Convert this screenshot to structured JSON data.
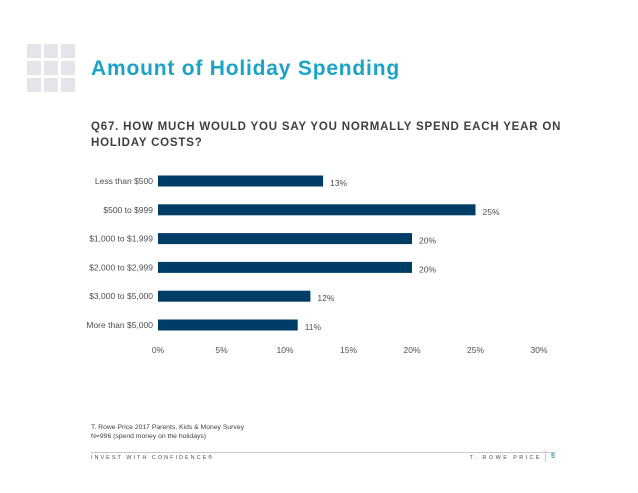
{
  "slide": {
    "title": "Amount of Holiday Spending",
    "question": "Q67. HOW MUCH WOULD YOU SAY YOU NORMALLY SPEND EACH YEAR ON HOLIDAY COSTS?"
  },
  "chart_data": {
    "type": "bar",
    "orientation": "horizontal",
    "categories": [
      "Less than $500",
      "$500 to $999",
      "$1,000 to $1,999",
      "$2,000 to $2,999",
      "$3,000 to $5,000",
      "More than $5,000"
    ],
    "values": [
      13,
      25,
      20,
      20,
      12,
      11
    ],
    "value_labels": [
      "13%",
      "25%",
      "20%",
      "20%",
      "12%",
      "11%"
    ],
    "xticks": [
      "0%",
      "5%",
      "10%",
      "15%",
      "20%",
      "25%",
      "30%"
    ],
    "xlim": [
      0,
      30
    ],
    "bar_color": "#003d66",
    "grid": false
  },
  "source": {
    "line1": "T. Rowe Price 2017 Parents, Kids & Money Survey",
    "line2": "N=996 (spend money on the holidays)"
  },
  "footer": {
    "tagline": "INVEST WITH CONFIDENCE®",
    "brand": "T. ROWE PRICE",
    "page_number": "5"
  },
  "colors": {
    "accent": "#1aa3c7",
    "logo_tile": "#e3e5e8"
  }
}
